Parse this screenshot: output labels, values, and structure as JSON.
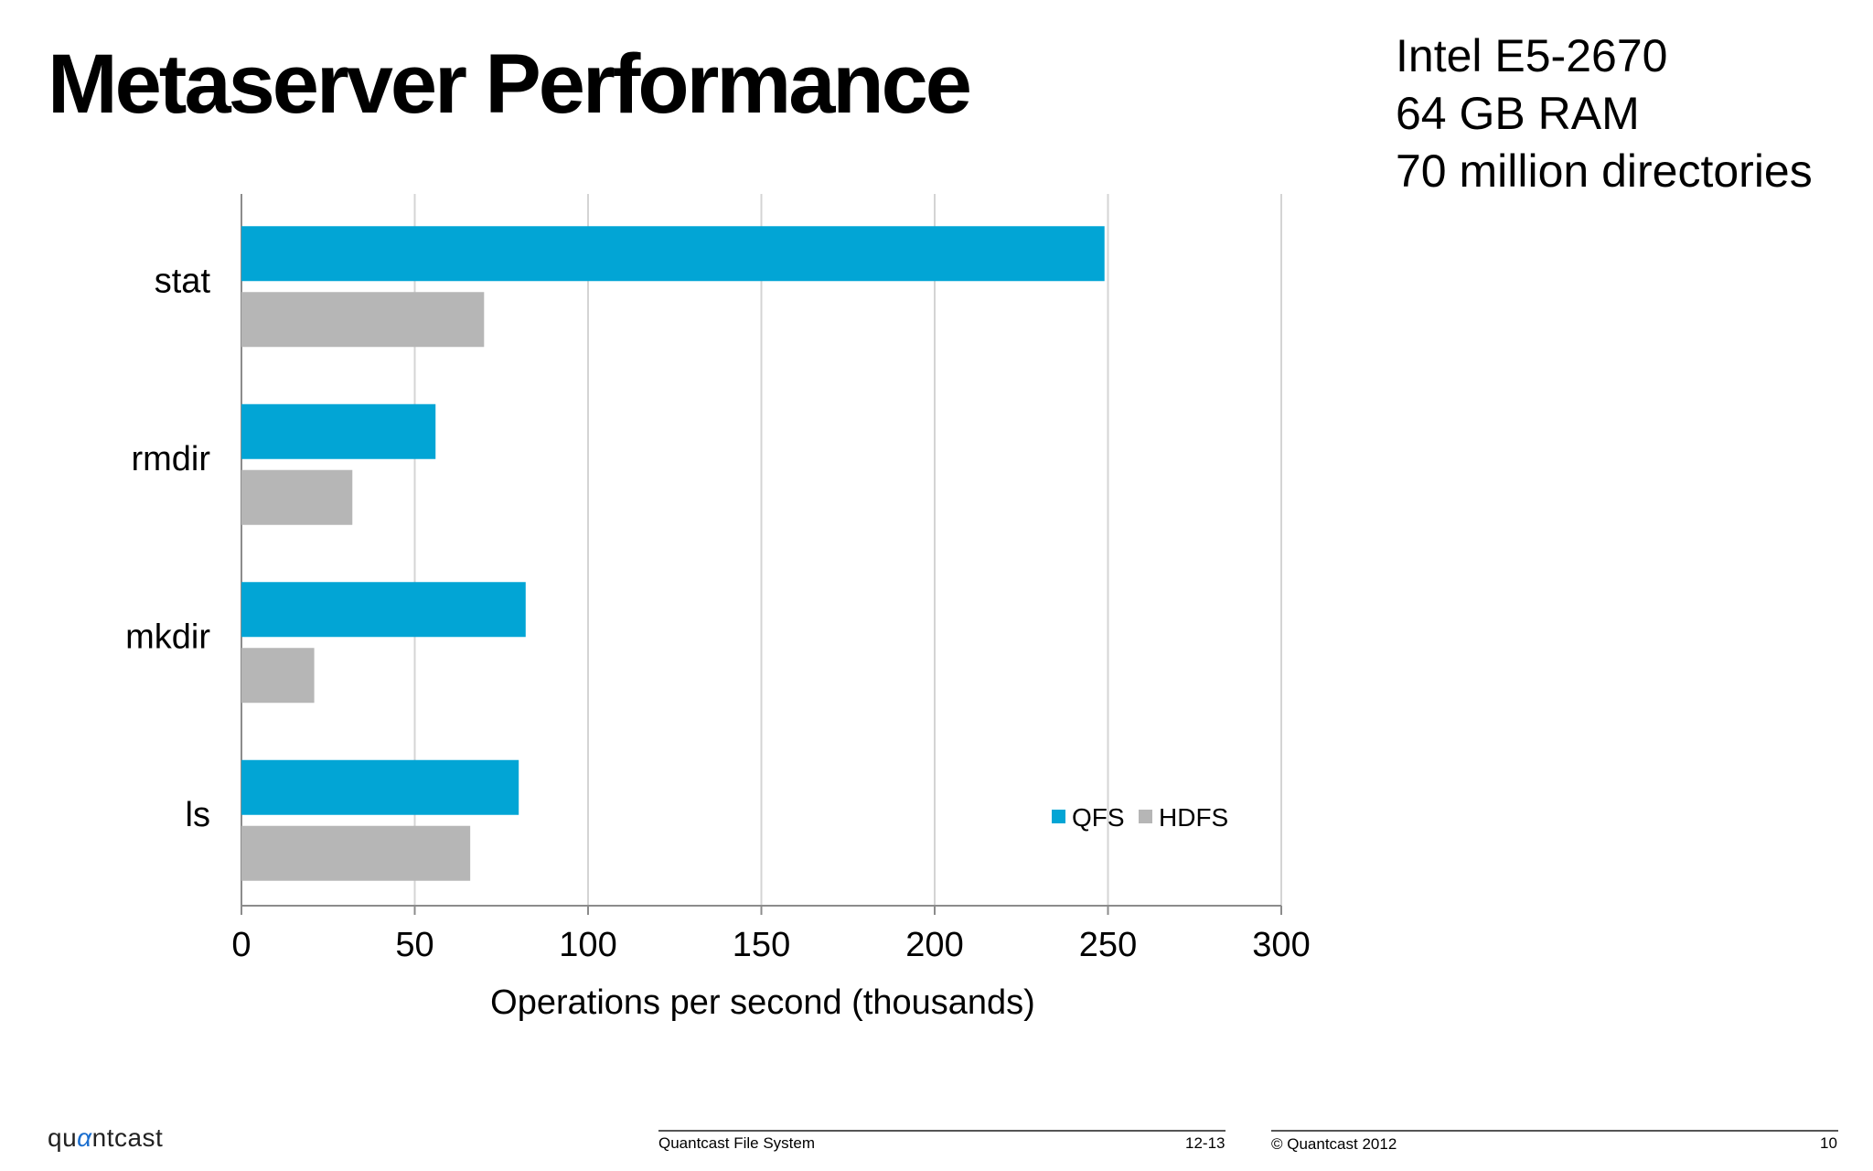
{
  "slide": {
    "title": "Metaserver Performance",
    "specs": [
      "Intel E5-2670",
      "64 GB RAM",
      "70 million directories"
    ]
  },
  "chart_data": {
    "type": "bar",
    "orientation": "horizontal",
    "categories": [
      "stat",
      "rmdir",
      "mkdir",
      "ls"
    ],
    "series": [
      {
        "name": "QFS",
        "values": [
          249,
          56,
          82,
          80
        ],
        "color": "#02A5D5"
      },
      {
        "name": "HDFS",
        "values": [
          70,
          32,
          21,
          66
        ],
        "color": "#B6B6B6"
      }
    ],
    "xlabel": "Operations per second (thousands)",
    "xlim": [
      0,
      300
    ],
    "xticks": [
      "0",
      "50",
      "100",
      "150",
      "200",
      "250",
      "300"
    ],
    "grid": "vertical",
    "legend": "bottom-right"
  },
  "footer": {
    "logo_pre": "qu",
    "logo_alpha": "α",
    "logo_post": "ntcast",
    "product": "Quantcast File System",
    "date": "12-13",
    "copyright": "© Quantcast 2012",
    "page": "10"
  }
}
